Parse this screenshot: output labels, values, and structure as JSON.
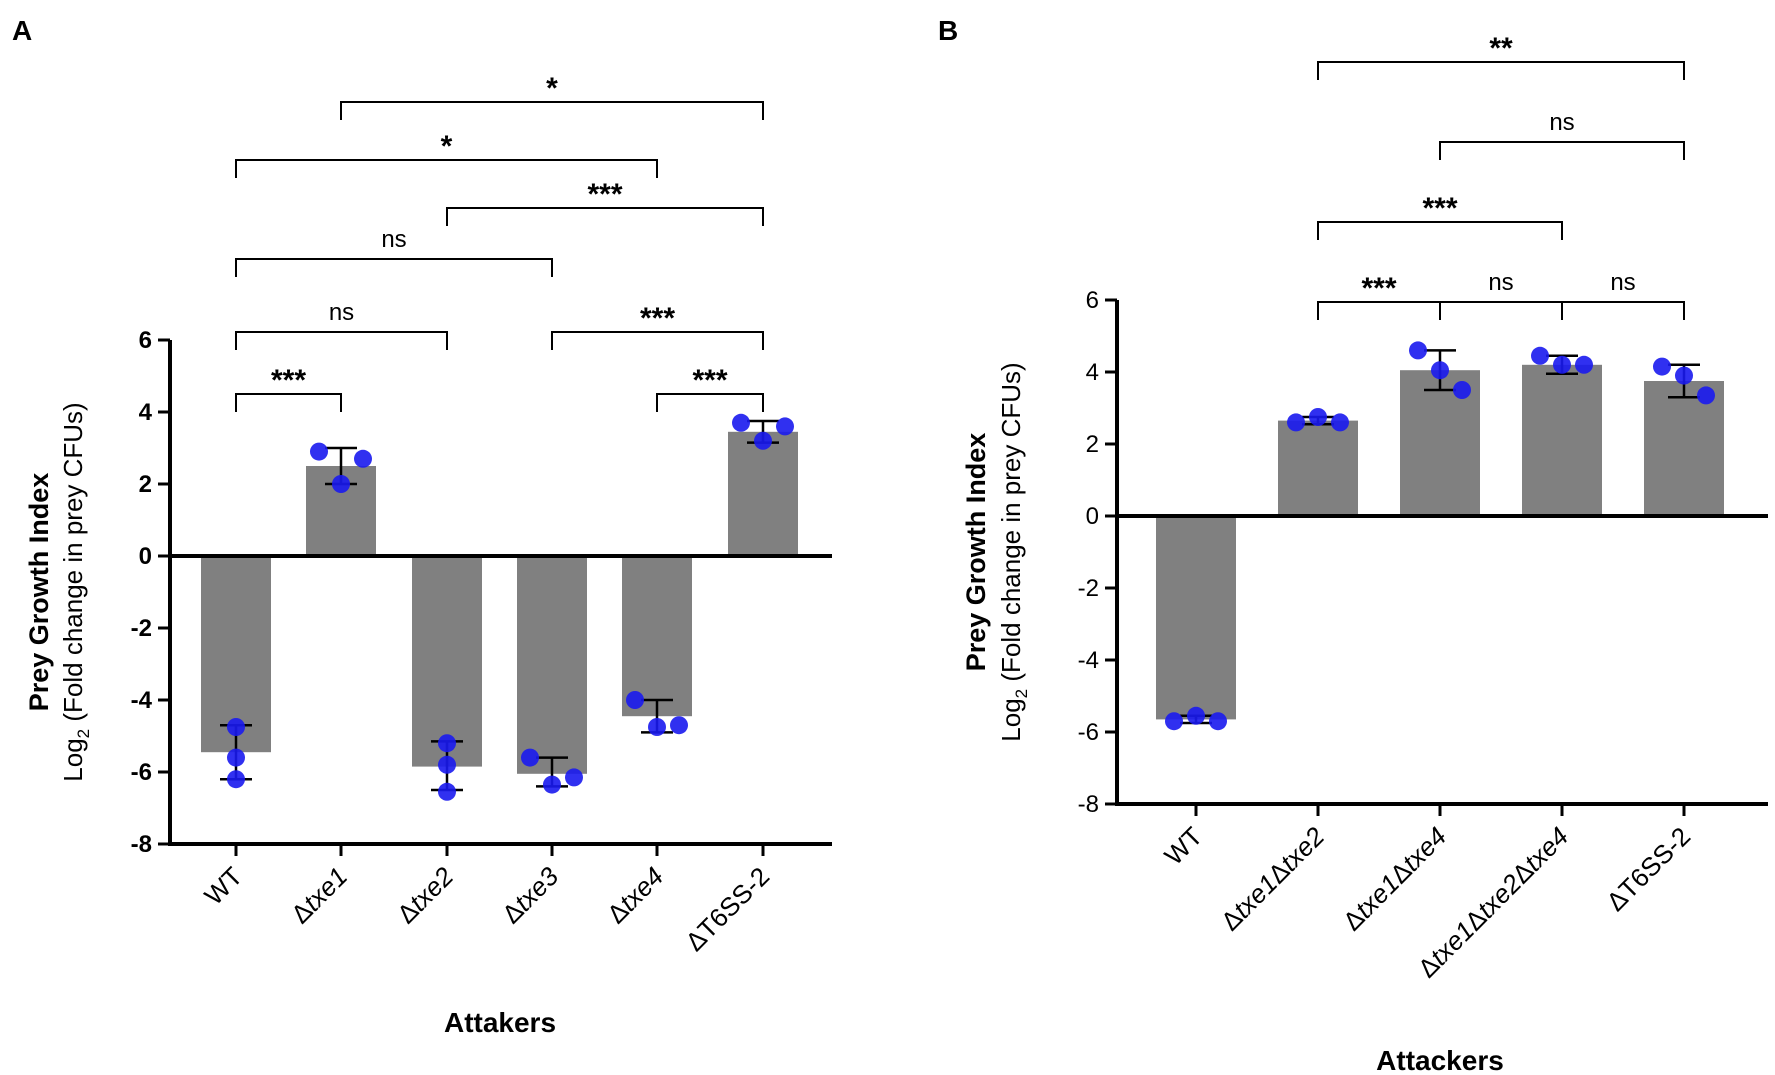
{
  "chart_data": [
    {
      "panel": "A",
      "type": "bar",
      "xlabel": "Attakers",
      "ylabel": "Prey Growth Index",
      "ylabel_sub_prefix": "Log",
      "ylabel_sub_subscript": "2",
      "ylabel_sub_rest": " (Fold change in prey CFUs)",
      "ylim": [
        -8,
        6
      ],
      "yticks": [
        6,
        4,
        2,
        0,
        -2,
        -4,
        -6,
        -8
      ],
      "categories": [
        {
          "delta": "",
          "name": "WT",
          "italic": false
        },
        {
          "delta": "Δ",
          "name": "txe1",
          "italic": true
        },
        {
          "delta": "Δ",
          "name": "txe2",
          "italic": true
        },
        {
          "delta": "Δ",
          "name": "txe3",
          "italic": true
        },
        {
          "delta": "Δ",
          "name": "txe4",
          "italic": true
        },
        {
          "delta": "Δ",
          "name": "T6SS-2",
          "italic": false
        }
      ],
      "values": [
        -5.45,
        2.5,
        -5.85,
        -6.05,
        -4.45,
        3.45
      ],
      "error_low": [
        -6.2,
        2.0,
        -6.5,
        -6.4,
        -4.9,
        3.15
      ],
      "error_high": [
        -4.7,
        3.0,
        -5.15,
        -5.6,
        -4.0,
        3.75
      ],
      "points": [
        [
          -4.75,
          -5.6,
          -6.2
        ],
        [
          2.9,
          2.0,
          2.7
        ],
        [
          -5.2,
          -5.8,
          -6.55
        ],
        [
          -5.6,
          -6.35,
          -6.15
        ],
        [
          -4.0,
          -4.75,
          -4.7
        ],
        [
          3.7,
          3.2,
          3.6
        ]
      ],
      "comparisons": [
        {
          "from": 0,
          "to": 1,
          "label": "***"
        },
        {
          "from": 4,
          "to": 5,
          "label": "***"
        },
        {
          "from": 0,
          "to": 2,
          "label": "ns"
        },
        {
          "from": 3,
          "to": 5,
          "label": "***"
        },
        {
          "from": 0,
          "to": 3,
          "label": "ns"
        },
        {
          "from": 2,
          "to": 5,
          "label": "***"
        },
        {
          "from": 0,
          "to": 4,
          "label": "*"
        },
        {
          "from": 1,
          "to": 5,
          "label": "*"
        }
      ]
    },
    {
      "panel": "B",
      "type": "bar",
      "xlabel": "Attackers",
      "ylabel": "Prey Growth Index",
      "ylabel_sub_prefix": "Log",
      "ylabel_sub_subscript": "2",
      "ylabel_sub_rest": " (Fold change in prey CFUs)",
      "ylim": [
        -8,
        6
      ],
      "yticks": [
        6,
        4,
        2,
        0,
        -2,
        -4,
        -6,
        -8
      ],
      "categories": [
        {
          "parts": [
            {
              "t": "WT",
              "i": false
            }
          ]
        },
        {
          "parts": [
            {
              "t": "Δ",
              "i": false
            },
            {
              "t": "txe1",
              "i": true
            },
            {
              "t": "Δ",
              "i": false
            },
            {
              "t": "txe2",
              "i": true
            }
          ]
        },
        {
          "parts": [
            {
              "t": "Δ",
              "i": false
            },
            {
              "t": "txe1",
              "i": true
            },
            {
              "t": "Δ",
              "i": false
            },
            {
              "t": "txe4",
              "i": true
            }
          ]
        },
        {
          "parts": [
            {
              "t": "Δ",
              "i": false
            },
            {
              "t": "txe1",
              "i": true
            },
            {
              "t": "Δ",
              "i": false
            },
            {
              "t": "txe2",
              "i": true
            },
            {
              "t": "Δ",
              "i": false
            },
            {
              "t": "txe4",
              "i": true
            }
          ]
        },
        {
          "parts": [
            {
              "t": "ΔT6SS-2",
              "i": false
            }
          ]
        }
      ],
      "values": [
        -5.65,
        2.65,
        4.05,
        4.2,
        3.75
      ],
      "error_low": [
        -5.75,
        2.55,
        3.5,
        3.95,
        3.3
      ],
      "error_high": [
        -5.55,
        2.75,
        4.6,
        4.45,
        4.2
      ],
      "points": [
        [
          -5.7,
          -5.55,
          -5.7
        ],
        [
          2.6,
          2.75,
          2.6
        ],
        [
          4.6,
          4.05,
          3.5
        ],
        [
          4.45,
          4.2,
          4.2
        ],
        [
          4.15,
          3.9,
          3.35
        ]
      ],
      "comparisons": [
        {
          "from": 1,
          "to": 2,
          "label": "***"
        },
        {
          "from": 2,
          "to": 3,
          "label": "ns"
        },
        {
          "from": 3,
          "to": 4,
          "label": "ns"
        },
        {
          "from": 1,
          "to": 3,
          "label": "***"
        },
        {
          "from": 2,
          "to": 4,
          "label": "ns"
        },
        {
          "from": 1,
          "to": 4,
          "label": "**"
        }
      ]
    }
  ],
  "colors": {
    "bar": "#808080",
    "point": "#1a1aee",
    "axis": "#000000"
  }
}
